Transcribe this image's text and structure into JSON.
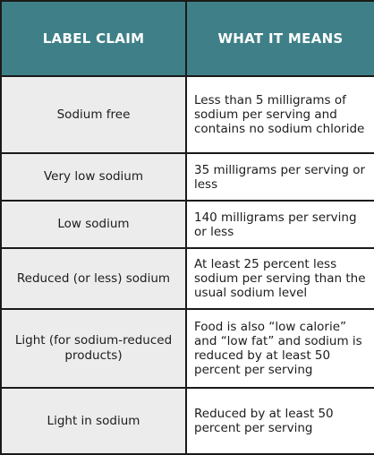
{
  "header": {
    "col1": "LABEL CLAIM",
    "col2": "WHAT IT MEANS"
  },
  "rows": [
    {
      "claim": "Sodium free",
      "means": "Less than 5 milligrams of sodium per serving and contains no sodium chloride"
    },
    {
      "claim": "Very low sodium",
      "means": "35 milligrams per serving or less"
    },
    {
      "claim": "Low sodium",
      "means": "140 milligrams per serving or less"
    },
    {
      "claim": "Reduced (or less) sodium",
      "means": "At least 25 percent less sodium per serving than the usual sodium level"
    },
    {
      "claim": "Light (for sodium-reduced products)",
      "means": "Food is also “low calorie” and “low fat” and sodium is reduced by at least 50 percent per serving"
    },
    {
      "claim": "Light in sodium",
      "means": "Reduced by at least 50 percent per serving"
    }
  ]
}
